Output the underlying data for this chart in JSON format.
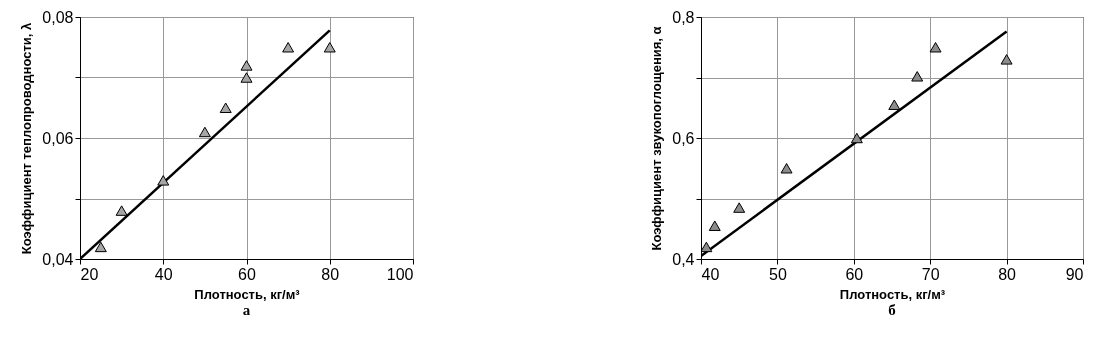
{
  "chart_data": [
    {
      "type": "scatter",
      "xlabel": "Плотность, кг/м³",
      "ylabel": "Коэффициент теплопроводности, λ",
      "annotations": [
        "а"
      ],
      "xlim": [
        20,
        100
      ],
      "xticks": [
        20,
        40,
        60,
        80,
        100
      ],
      "ylim": [
        0.04,
        0.08
      ],
      "yticks": [
        {
          "value": 0.04,
          "label": "0,04"
        },
        {
          "value": 0.05,
          "label": null
        },
        {
          "value": 0.06,
          "label": "0,06"
        },
        {
          "value": 0.07,
          "label": null
        },
        {
          "value": 0.08,
          "label": "0,08"
        }
      ],
      "grid": true,
      "series": [
        {
          "type": "line",
          "marker": "none",
          "color": "#000000",
          "x": [
            20,
            80
          ],
          "values": [
            0.04,
            0.0778
          ]
        },
        {
          "marker": "triangle",
          "color": "#a6a6a6",
          "x": [
            25,
            30,
            40,
            50,
            55,
            60,
            60,
            70,
            80
          ],
          "values": [
            0.042,
            0.048,
            0.053,
            0.061,
            0.065,
            0.072,
            0.07,
            0.075,
            0.075
          ]
        }
      ]
    },
    {
      "type": "scatter",
      "xlabel": "Плотность, кг/м³",
      "ylabel": "Коэффициент звукопоглощения, α",
      "annotations": [
        "б"
      ],
      "xlim": [
        40,
        90
      ],
      "xticks": [
        40,
        50,
        60,
        70,
        80,
        90
      ],
      "ylim": [
        0.4,
        0.8
      ],
      "yticks": [
        {
          "value": 0.4,
          "label": "0,4"
        },
        {
          "value": 0.5,
          "label": null
        },
        {
          "value": 0.6,
          "label": "0,6"
        },
        {
          "value": 0.7,
          "label": null
        },
        {
          "value": 0.8,
          "label": "0,8"
        }
      ],
      "grid": true,
      "series": [
        {
          "type": "line",
          "marker": "none",
          "color": "#000000",
          "x": [
            40,
            80
          ],
          "values": [
            0.405,
            0.776
          ]
        },
        {
          "marker": "triangle",
          "color": "#8c8c8c",
          "x": [
            40.7,
            41.8,
            45,
            51.2,
            60.4,
            65.3,
            68.3,
            70.7,
            80
          ],
          "values": [
            0.42,
            0.455,
            0.485,
            0.55,
            0.6,
            0.655,
            0.702,
            0.75,
            0.73
          ]
        }
      ]
    }
  ]
}
